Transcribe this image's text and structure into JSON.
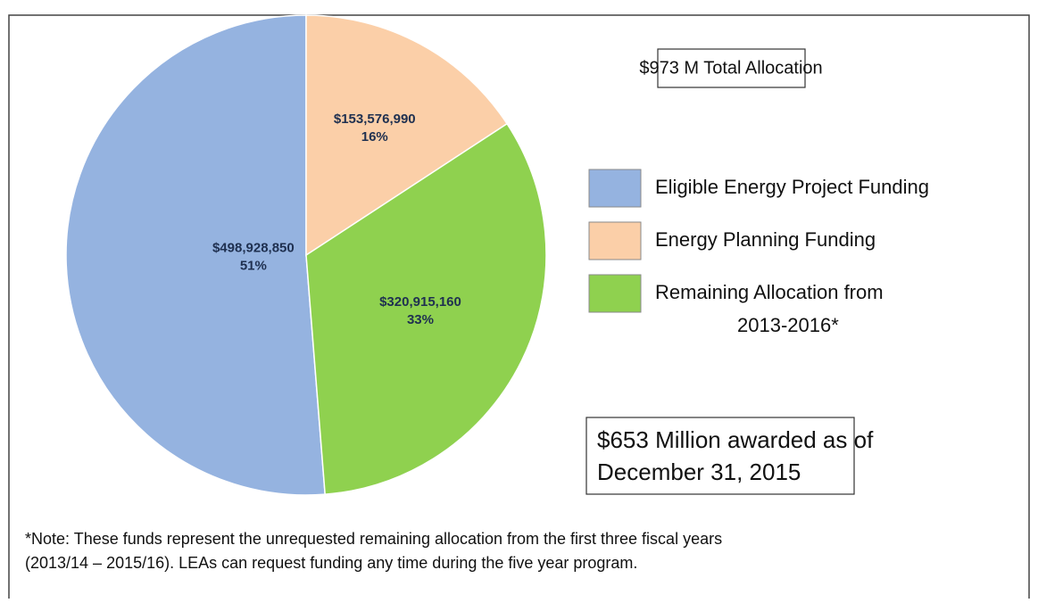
{
  "chart_data": {
    "type": "pie",
    "series": [
      {
        "name": "Eligible Energy Project Funding",
        "color": "#95b3e0"
      },
      {
        "name": "Energy Planning Funding",
        "color": "#fbcfa8"
      },
      {
        "name": "Remaining Allocation from\n2013-2016*",
        "color": "#8fd14f"
      }
    ],
    "values": [
      498928850,
      153576990,
      320915160
    ],
    "value_labels": [
      "$498,928,850",
      "$153,576,990",
      "$320,915,160"
    ],
    "percents": [
      51,
      16,
      33
    ],
    "percent_labels": [
      "51%",
      "16%",
      "33%"
    ],
    "annotations": [
      "$973 M Total Allocation",
      "$653 Million awarded as of\nDecember 31, 2015"
    ],
    "note": [
      "*Note: These funds represent the unrequested remaining allocation from the first three fiscal years",
      "(2013/14 – 2015/16). LEAs can request funding any time during the five year program."
    ]
  }
}
